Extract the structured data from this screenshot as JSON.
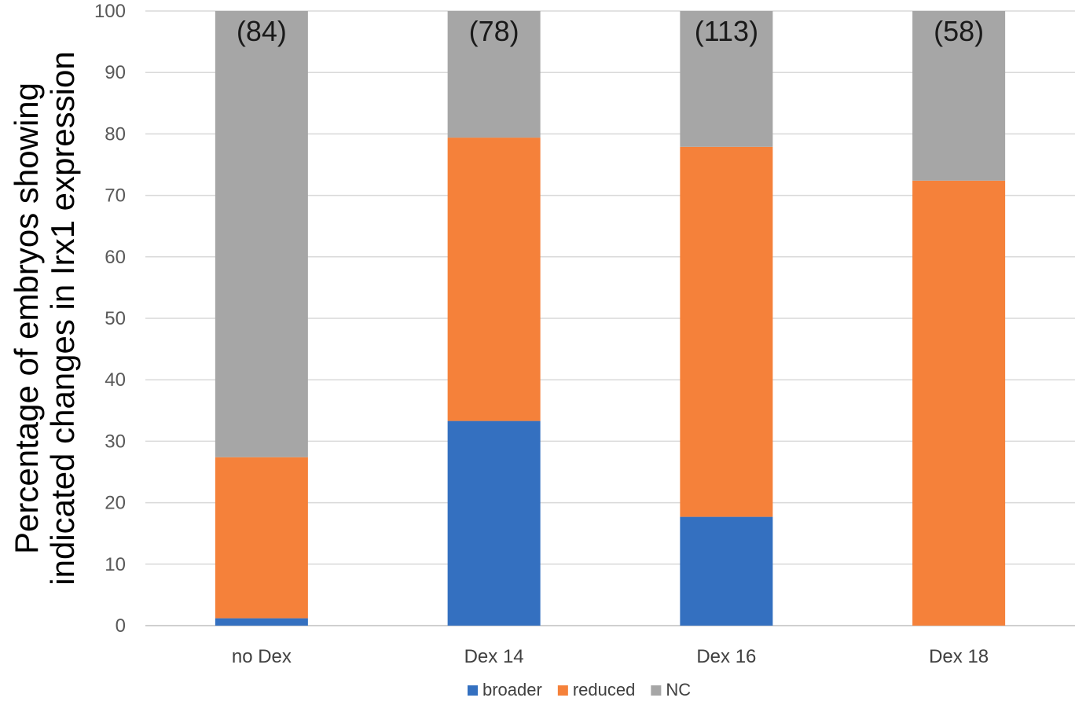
{
  "chart_data": {
    "type": "bar",
    "stacked": true,
    "categories": [
      "no Dex",
      "Dex 14",
      "Dex 16",
      "Dex 18"
    ],
    "series": [
      {
        "name": "broader",
        "color": "#3470c0",
        "values": [
          1.2,
          33.3,
          17.7,
          0
        ]
      },
      {
        "name": "reduced",
        "color": "#f5813a",
        "values": [
          26.2,
          46.1,
          60.2,
          72.4
        ]
      },
      {
        "name": "NC",
        "color": "#a6a6a6",
        "values": [
          72.6,
          20.6,
          22.1,
          27.6
        ]
      }
    ],
    "bar_annotations": [
      "(84)",
      "(78)",
      "(113)",
      "(58)"
    ],
    "ylabel_lines": [
      "Percentage of embryos showing",
      "indicated changes in Irx1 expression"
    ],
    "xlabel": "",
    "ylim": [
      0,
      100
    ],
    "yticks": [
      0,
      10,
      20,
      30,
      40,
      50,
      60,
      70,
      80,
      90,
      100
    ],
    "grid": true,
    "legend_position": "bottom"
  }
}
